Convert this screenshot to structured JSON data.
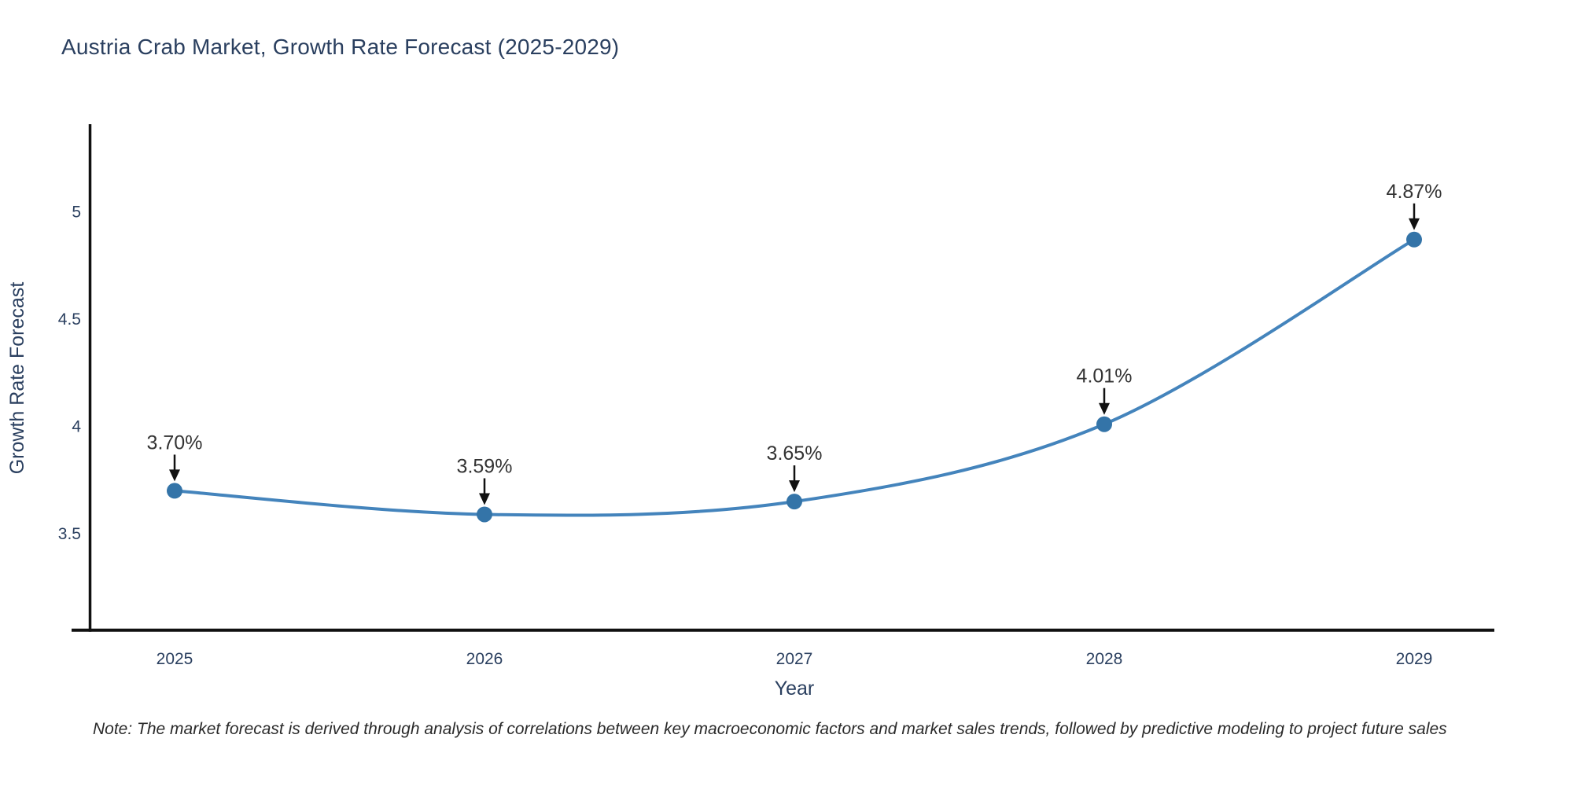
{
  "note": "Note: The market forecast is derived through analysis of correlations between key macroeconomic factors and market sales trends, followed by predictive modeling to project future sales",
  "chart_data": {
    "type": "line",
    "title": "Austria Crab Market, Growth Rate Forecast (2025-2029)",
    "x": [
      2025,
      2026,
      2027,
      2028,
      2029
    ],
    "x_tick_labels": [
      "2025",
      "2026",
      "2027",
      "2028",
      "2029"
    ],
    "series": [
      {
        "name": "Growth Rate Forecast",
        "values": [
          3.7,
          3.59,
          3.65,
          4.01,
          4.87
        ]
      }
    ],
    "point_labels": [
      "3.70%",
      "3.59%",
      "3.65%",
      "4.01%",
      "4.87%"
    ],
    "xlabel": "Year",
    "ylabel": "Growth Rate Forecast",
    "ytick_values": [
      3.5,
      4,
      4.5,
      5
    ],
    "ytick_labels": [
      "3.5",
      "4",
      "4.5",
      "5"
    ],
    "ylim": [
      3.05,
      5.4
    ],
    "grid": false,
    "legend_position": "none",
    "line_shape": "spline",
    "annotation_arrows": true,
    "colors": {
      "line": "#4484bc",
      "marker": "#3474a8",
      "axis": "#111111",
      "tick_text": "#2a3f5f",
      "title_text": "#2a3f5f",
      "annotation_text": "#333333",
      "arrow": "#111111",
      "background": "#ffffff"
    }
  }
}
